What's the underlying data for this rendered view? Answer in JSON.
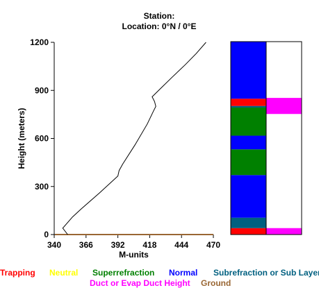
{
  "header": {
    "station_line": "Station:",
    "location_line": "Location:  0°N /  0°E"
  },
  "colors": {
    "trapping": "#ff0000",
    "neutral": "#ffff00",
    "superrefraction": "#008000",
    "normal": "#0000ff",
    "subrefraction": "#006080",
    "duct": "#ff00ff",
    "ground": "#996633",
    "profile": "#000000"
  },
  "legend": {
    "items": [
      {
        "key": "trapping",
        "label": "Trapping"
      },
      {
        "key": "neutral",
        "label": "Neutral"
      },
      {
        "key": "superrefraction",
        "label": "Superrefraction"
      },
      {
        "key": "normal",
        "label": "Normal"
      },
      {
        "key": "subrefraction",
        "label": "Subrefraction or Sub Layer"
      },
      {
        "key": "duct",
        "label": "Duct or Evap Duct Height"
      },
      {
        "key": "ground",
        "label": "Ground"
      }
    ]
  },
  "chart_data": [
    {
      "type": "line",
      "xlabel": "M-units",
      "ylabel": "Height (meters)",
      "xlim": [
        340,
        470
      ],
      "ylim": [
        0,
        1200
      ],
      "xticks": [
        "340",
        "366",
        "392",
        "418",
        "444",
        "470"
      ],
      "yticks": [
        "0",
        "300",
        "600",
        "900",
        "1200"
      ],
      "ground_level": 0,
      "series": [
        {
          "points": [
            [
              351,
              0
            ],
            [
              347,
              40
            ],
            [
              355,
              110
            ],
            [
              362,
              160
            ],
            [
              377,
              260
            ],
            [
              392,
              365
            ],
            [
              393,
              400
            ],
            [
              396,
              440
            ],
            [
              406,
              560
            ],
            [
              416,
              690
            ],
            [
              421,
              770
            ],
            [
              423,
              800
            ],
            [
              422,
              830
            ],
            [
              420,
              860
            ],
            [
              428,
              920
            ],
            [
              436,
              980
            ],
            [
              447,
              1060
            ],
            [
              456,
              1130
            ],
            [
              464,
              1200
            ]
          ]
        }
      ]
    },
    {
      "type": "bar",
      "stack": "refraction_layers",
      "ylim": [
        0,
        1200
      ],
      "layers": [
        {
          "category": "trapping",
          "from": 0,
          "to": 40
        },
        {
          "category": "subrefraction",
          "from": 40,
          "to": 105
        },
        {
          "category": "normal",
          "from": 105,
          "to": 370
        },
        {
          "category": "superrefraction",
          "from": 370,
          "to": 530
        },
        {
          "category": "normal",
          "from": 530,
          "to": 615
        },
        {
          "category": "superrefraction",
          "from": 615,
          "to": 790
        },
        {
          "category": "subrefraction",
          "from": 790,
          "to": 800
        },
        {
          "category": "trapping",
          "from": 800,
          "to": 845
        },
        {
          "category": "normal",
          "from": 845,
          "to": 1200
        }
      ],
      "ducts": [
        {
          "from": 0,
          "to": 40
        },
        {
          "from": 750,
          "to": 850
        }
      ]
    }
  ]
}
